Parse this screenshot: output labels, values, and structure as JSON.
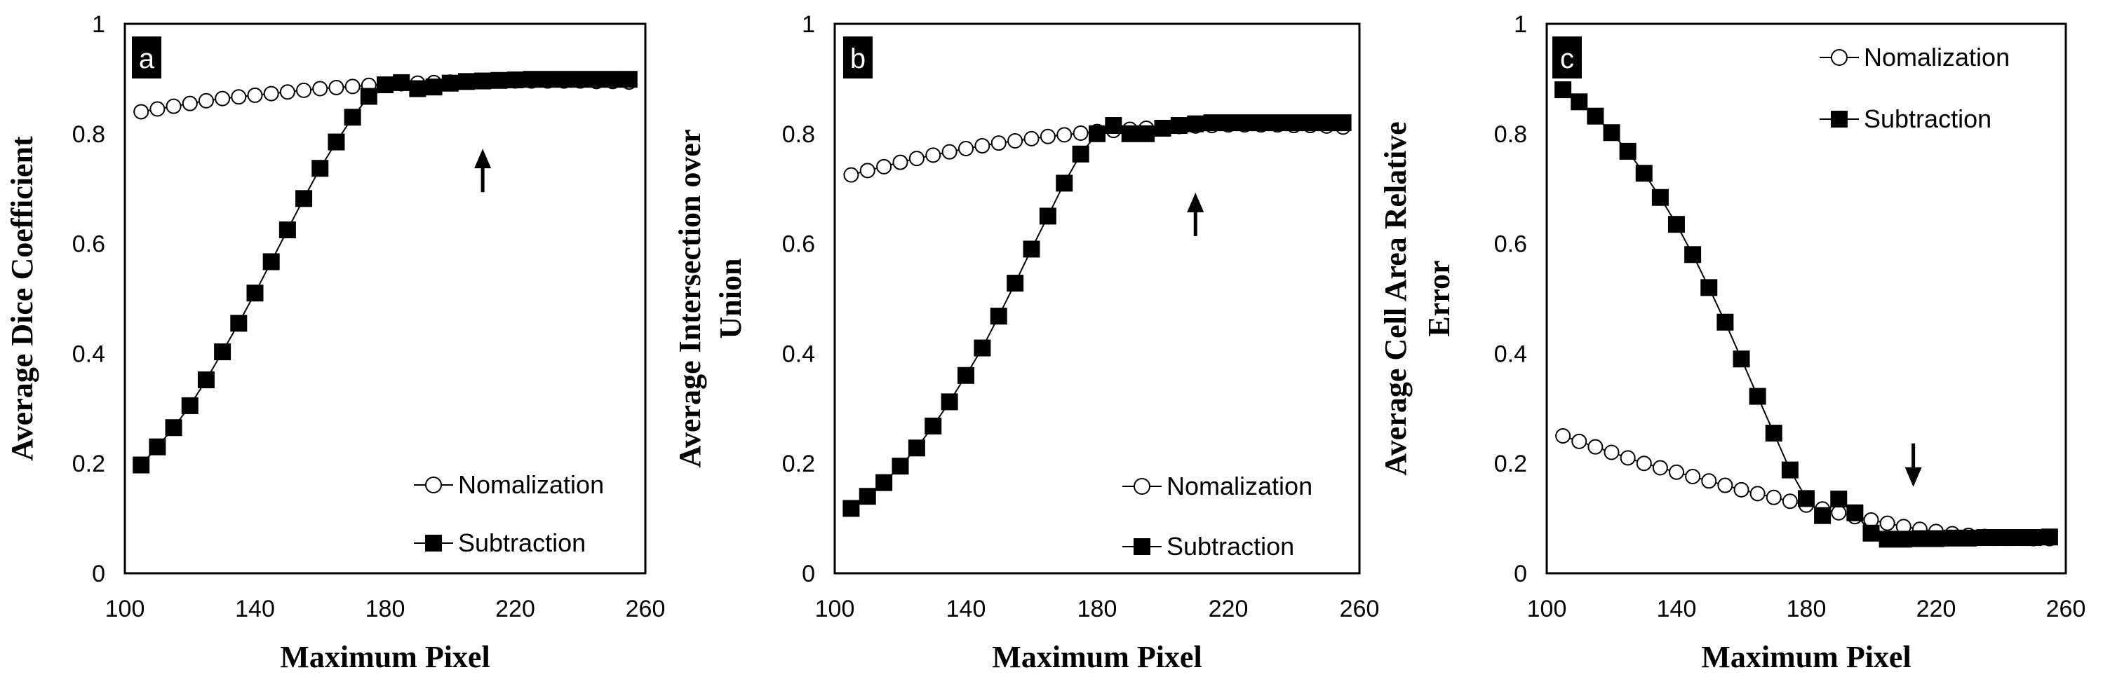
{
  "chart_data": [
    {
      "type": "line",
      "panel_label": "a",
      "title": "",
      "xlabel": "Maximum Pixel",
      "ylabel": "Average Dice Coefficient",
      "ylabel_lines": [
        "Average Dice Coefficient"
      ],
      "xlim": [
        100,
        260
      ],
      "ylim": [
        0,
        1
      ],
      "xticks": [
        "100",
        "140",
        "180",
        "220",
        "260"
      ],
      "yticks": [
        "0",
        "0.2",
        "0.4",
        "0.6",
        "0.8",
        "1"
      ],
      "legend_position": "bottom-right",
      "arrow": {
        "x": 210,
        "y": 0.76,
        "direction": "up"
      },
      "x": [
        105,
        110,
        115,
        120,
        125,
        130,
        135,
        140,
        145,
        150,
        155,
        160,
        165,
        170,
        175,
        180,
        185,
        190,
        195,
        200,
        205,
        210,
        215,
        220,
        225,
        230,
        235,
        240,
        245,
        250,
        255
      ],
      "series": [
        {
          "name": "Nomalization",
          "marker": "open-circle",
          "values": [
            0.84,
            0.845,
            0.85,
            0.855,
            0.86,
            0.864,
            0.867,
            0.87,
            0.873,
            0.876,
            0.879,
            0.882,
            0.884,
            0.886,
            0.888,
            0.89,
            0.891,
            0.892,
            0.893,
            0.894,
            0.895,
            0.895,
            0.896,
            0.896,
            0.896,
            0.896,
            0.896,
            0.896,
            0.895,
            0.895,
            0.894
          ]
        },
        {
          "name": "Subtraction",
          "marker": "filled-square",
          "values": [
            0.197,
            0.23,
            0.265,
            0.305,
            0.352,
            0.403,
            0.455,
            0.51,
            0.567,
            0.625,
            0.682,
            0.737,
            0.785,
            0.83,
            0.868,
            0.889,
            0.893,
            0.882,
            0.885,
            0.892,
            0.895,
            0.896,
            0.897,
            0.898,
            0.899,
            0.899,
            0.899,
            0.899,
            0.899,
            0.899,
            0.899
          ]
        }
      ]
    },
    {
      "type": "line",
      "panel_label": "b",
      "title": "",
      "xlabel": "Maximum Pixel",
      "ylabel": "Average  Intersection over Union",
      "ylabel_lines": [
        "Average  Intersection over",
        "Union"
      ],
      "xlim": [
        100,
        260
      ],
      "ylim": [
        0,
        1
      ],
      "xticks": [
        "100",
        "140",
        "180",
        "220",
        "260"
      ],
      "yticks": [
        "0",
        "0.2",
        "0.4",
        "0.6",
        "0.8",
        "1"
      ],
      "legend_position": "bottom-right",
      "arrow": {
        "x": 210,
        "y": 0.68,
        "direction": "up"
      },
      "x": [
        105,
        110,
        115,
        120,
        125,
        130,
        135,
        140,
        145,
        150,
        155,
        160,
        165,
        170,
        175,
        180,
        185,
        190,
        195,
        200,
        205,
        210,
        215,
        220,
        225,
        230,
        235,
        240,
        245,
        250,
        255
      ],
      "series": [
        {
          "name": "Nomalization",
          "marker": "open-circle",
          "values": [
            0.725,
            0.733,
            0.74,
            0.748,
            0.755,
            0.761,
            0.767,
            0.773,
            0.778,
            0.783,
            0.787,
            0.791,
            0.795,
            0.798,
            0.801,
            0.804,
            0.806,
            0.808,
            0.81,
            0.811,
            0.813,
            0.814,
            0.815,
            0.816,
            0.816,
            0.816,
            0.816,
            0.815,
            0.815,
            0.814,
            0.812
          ]
        },
        {
          "name": "Subtraction",
          "marker": "filled-square",
          "values": [
            0.118,
            0.14,
            0.165,
            0.195,
            0.228,
            0.268,
            0.312,
            0.36,
            0.41,
            0.468,
            0.528,
            0.59,
            0.65,
            0.71,
            0.763,
            0.8,
            0.815,
            0.8,
            0.8,
            0.81,
            0.815,
            0.818,
            0.82,
            0.82,
            0.82,
            0.82,
            0.82,
            0.82,
            0.82,
            0.82,
            0.82
          ]
        }
      ]
    },
    {
      "type": "line",
      "panel_label": "c",
      "title": "",
      "xlabel": "Maximum Pixel",
      "ylabel": "Average Cell Area Relative Error",
      "ylabel_lines": [
        "Average Cell Area Relative",
        "Error"
      ],
      "xlim": [
        100,
        260
      ],
      "ylim": [
        0,
        1
      ],
      "xticks": [
        "100",
        "140",
        "180",
        "220",
        "260"
      ],
      "yticks": [
        "0",
        "0.2",
        "0.4",
        "0.6",
        "0.8",
        "1"
      ],
      "legend_position": "top-right",
      "arrow": {
        "x": 213,
        "y": 0.17,
        "direction": "down"
      },
      "x": [
        105,
        110,
        115,
        120,
        125,
        130,
        135,
        140,
        145,
        150,
        155,
        160,
        165,
        170,
        175,
        180,
        185,
        190,
        195,
        200,
        205,
        210,
        215,
        220,
        225,
        230,
        235,
        240,
        245,
        250,
        255
      ],
      "series": [
        {
          "name": "Nomalization",
          "marker": "open-circle",
          "values": [
            0.25,
            0.24,
            0.23,
            0.22,
            0.21,
            0.2,
            0.192,
            0.184,
            0.176,
            0.168,
            0.16,
            0.152,
            0.145,
            0.138,
            0.131,
            0.124,
            0.117,
            0.11,
            0.103,
            0.097,
            0.091,
            0.085,
            0.08,
            0.076,
            0.072,
            0.069,
            0.067,
            0.065,
            0.064,
            0.063,
            0.063
          ]
        },
        {
          "name": "Subtraction",
          "marker": "filled-square",
          "values": [
            0.88,
            0.858,
            0.832,
            0.802,
            0.768,
            0.728,
            0.684,
            0.635,
            0.58,
            0.52,
            0.457,
            0.39,
            0.322,
            0.255,
            0.188,
            0.136,
            0.105,
            0.135,
            0.11,
            0.073,
            0.062,
            0.062,
            0.063,
            0.063,
            0.064,
            0.064,
            0.065,
            0.065,
            0.065,
            0.065,
            0.066
          ]
        }
      ]
    }
  ]
}
